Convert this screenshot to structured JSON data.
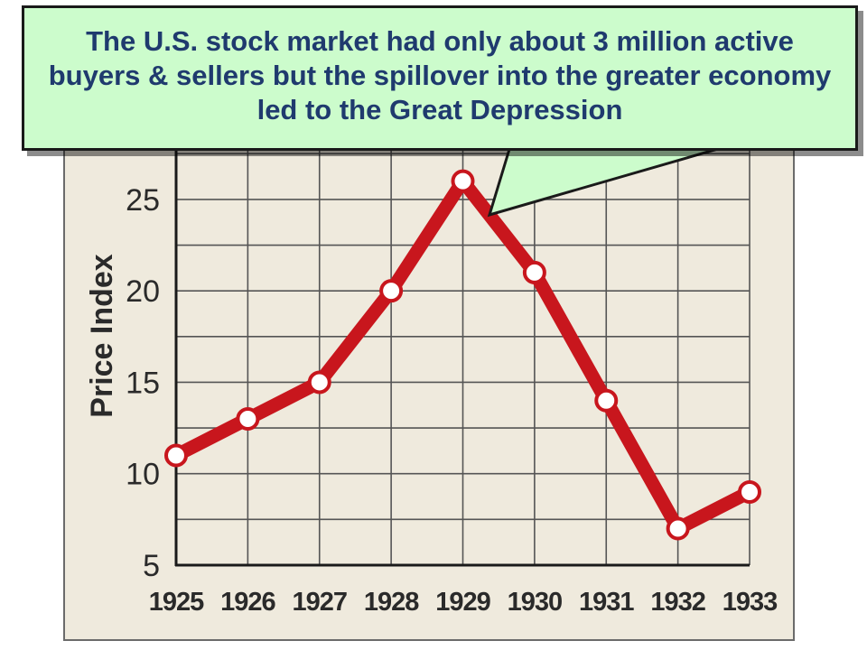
{
  "callout": {
    "text": "The U.S. stock market had only about 3 million active buyers & sellers but the spillover into the greater economy led to the Great Depression",
    "background": "#ccfccc",
    "text_color": "#1f3a6e"
  },
  "colors": {
    "line": "#c8161d",
    "marker_fill": "#ffffff",
    "grid": "#555555",
    "panel_background": "#efeadd"
  },
  "chart_data": {
    "type": "line",
    "title": "",
    "xlabel": "",
    "ylabel": "Price Index",
    "categories": [
      "1925",
      "1926",
      "1927",
      "1928",
      "1929",
      "1930",
      "1931",
      "1932",
      "1933"
    ],
    "series": [
      {
        "values": [
          11,
          13,
          15,
          20,
          26,
          21,
          14,
          7,
          9
        ]
      }
    ],
    "y_ticks": [
      5,
      10,
      15,
      20,
      25
    ],
    "ylim": [
      5,
      28.5
    ],
    "grid": true,
    "legend": "none"
  }
}
